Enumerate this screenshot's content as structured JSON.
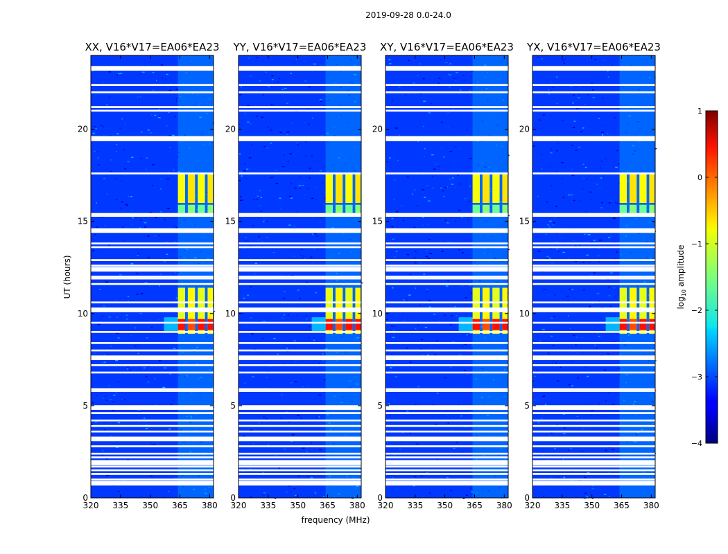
{
  "chart_data": {
    "type": "heatmap",
    "suptitle": "2019-09-28 0.0-24.0",
    "xlabel": "frequency (MHz)",
    "ylabel": "UT (hours)",
    "xlim": [
      320,
      382
    ],
    "ylim": [
      0,
      24
    ],
    "xticks": [
      320,
      335,
      350,
      365,
      380
    ],
    "yticks": [
      0,
      5,
      10,
      15,
      20
    ],
    "panels": [
      {
        "title": "XX, V16*V17=EA06*EA23"
      },
      {
        "title": "YY, V16*V17=EA06*EA23"
      },
      {
        "title": "XY, V16*V17=EA06*EA23"
      },
      {
        "title": "YX, V16*V17=EA06*EA23"
      }
    ],
    "colorbar": {
      "label": "log10 amplitude",
      "label_main": "log",
      "label_sub": "10",
      "label_rest": " amplitude",
      "range": [
        -4,
        1
      ],
      "ticks": [
        "1",
        "0",
        "−1",
        "−2",
        "−3",
        "−4"
      ],
      "tick_values": [
        1,
        0,
        -1,
        -2,
        -3,
        -4
      ]
    },
    "background_level": -3.1,
    "rfi_bands_mhz": [
      [
        364,
        368
      ],
      [
        369,
        373
      ],
      [
        374,
        378
      ],
      [
        379,
        382
      ]
    ],
    "rfi_strong_times_hours": [
      [
        16.0,
        17.6
      ],
      [
        8.9,
        11.4
      ],
      [
        15.3,
        15.9
      ]
    ],
    "rfi_peak_time_hours": [
      9.1,
      9.7
    ],
    "rfi_peak_level": 0.3,
    "flagged_rows_hours": [
      23.3,
      22.4,
      22.0,
      21.2,
      21.0,
      19.5,
      19.4,
      17.6,
      15.4,
      15.3,
      14.5,
      13.8,
      13.6,
      12.9,
      12.6,
      12.4,
      12.0,
      11.9,
      11.6,
      10.6,
      10.2,
      9.5,
      9.0,
      8.4,
      8.0,
      7.6,
      7.2,
      6.8,
      5.9,
      5.8,
      4.9,
      4.6,
      4.2,
      3.9,
      3.6,
      3.2,
      2.8,
      2.4,
      2.2,
      2.0,
      1.9,
      1.7,
      1.5,
      1.3,
      1.0,
      0.8
    ]
  }
}
